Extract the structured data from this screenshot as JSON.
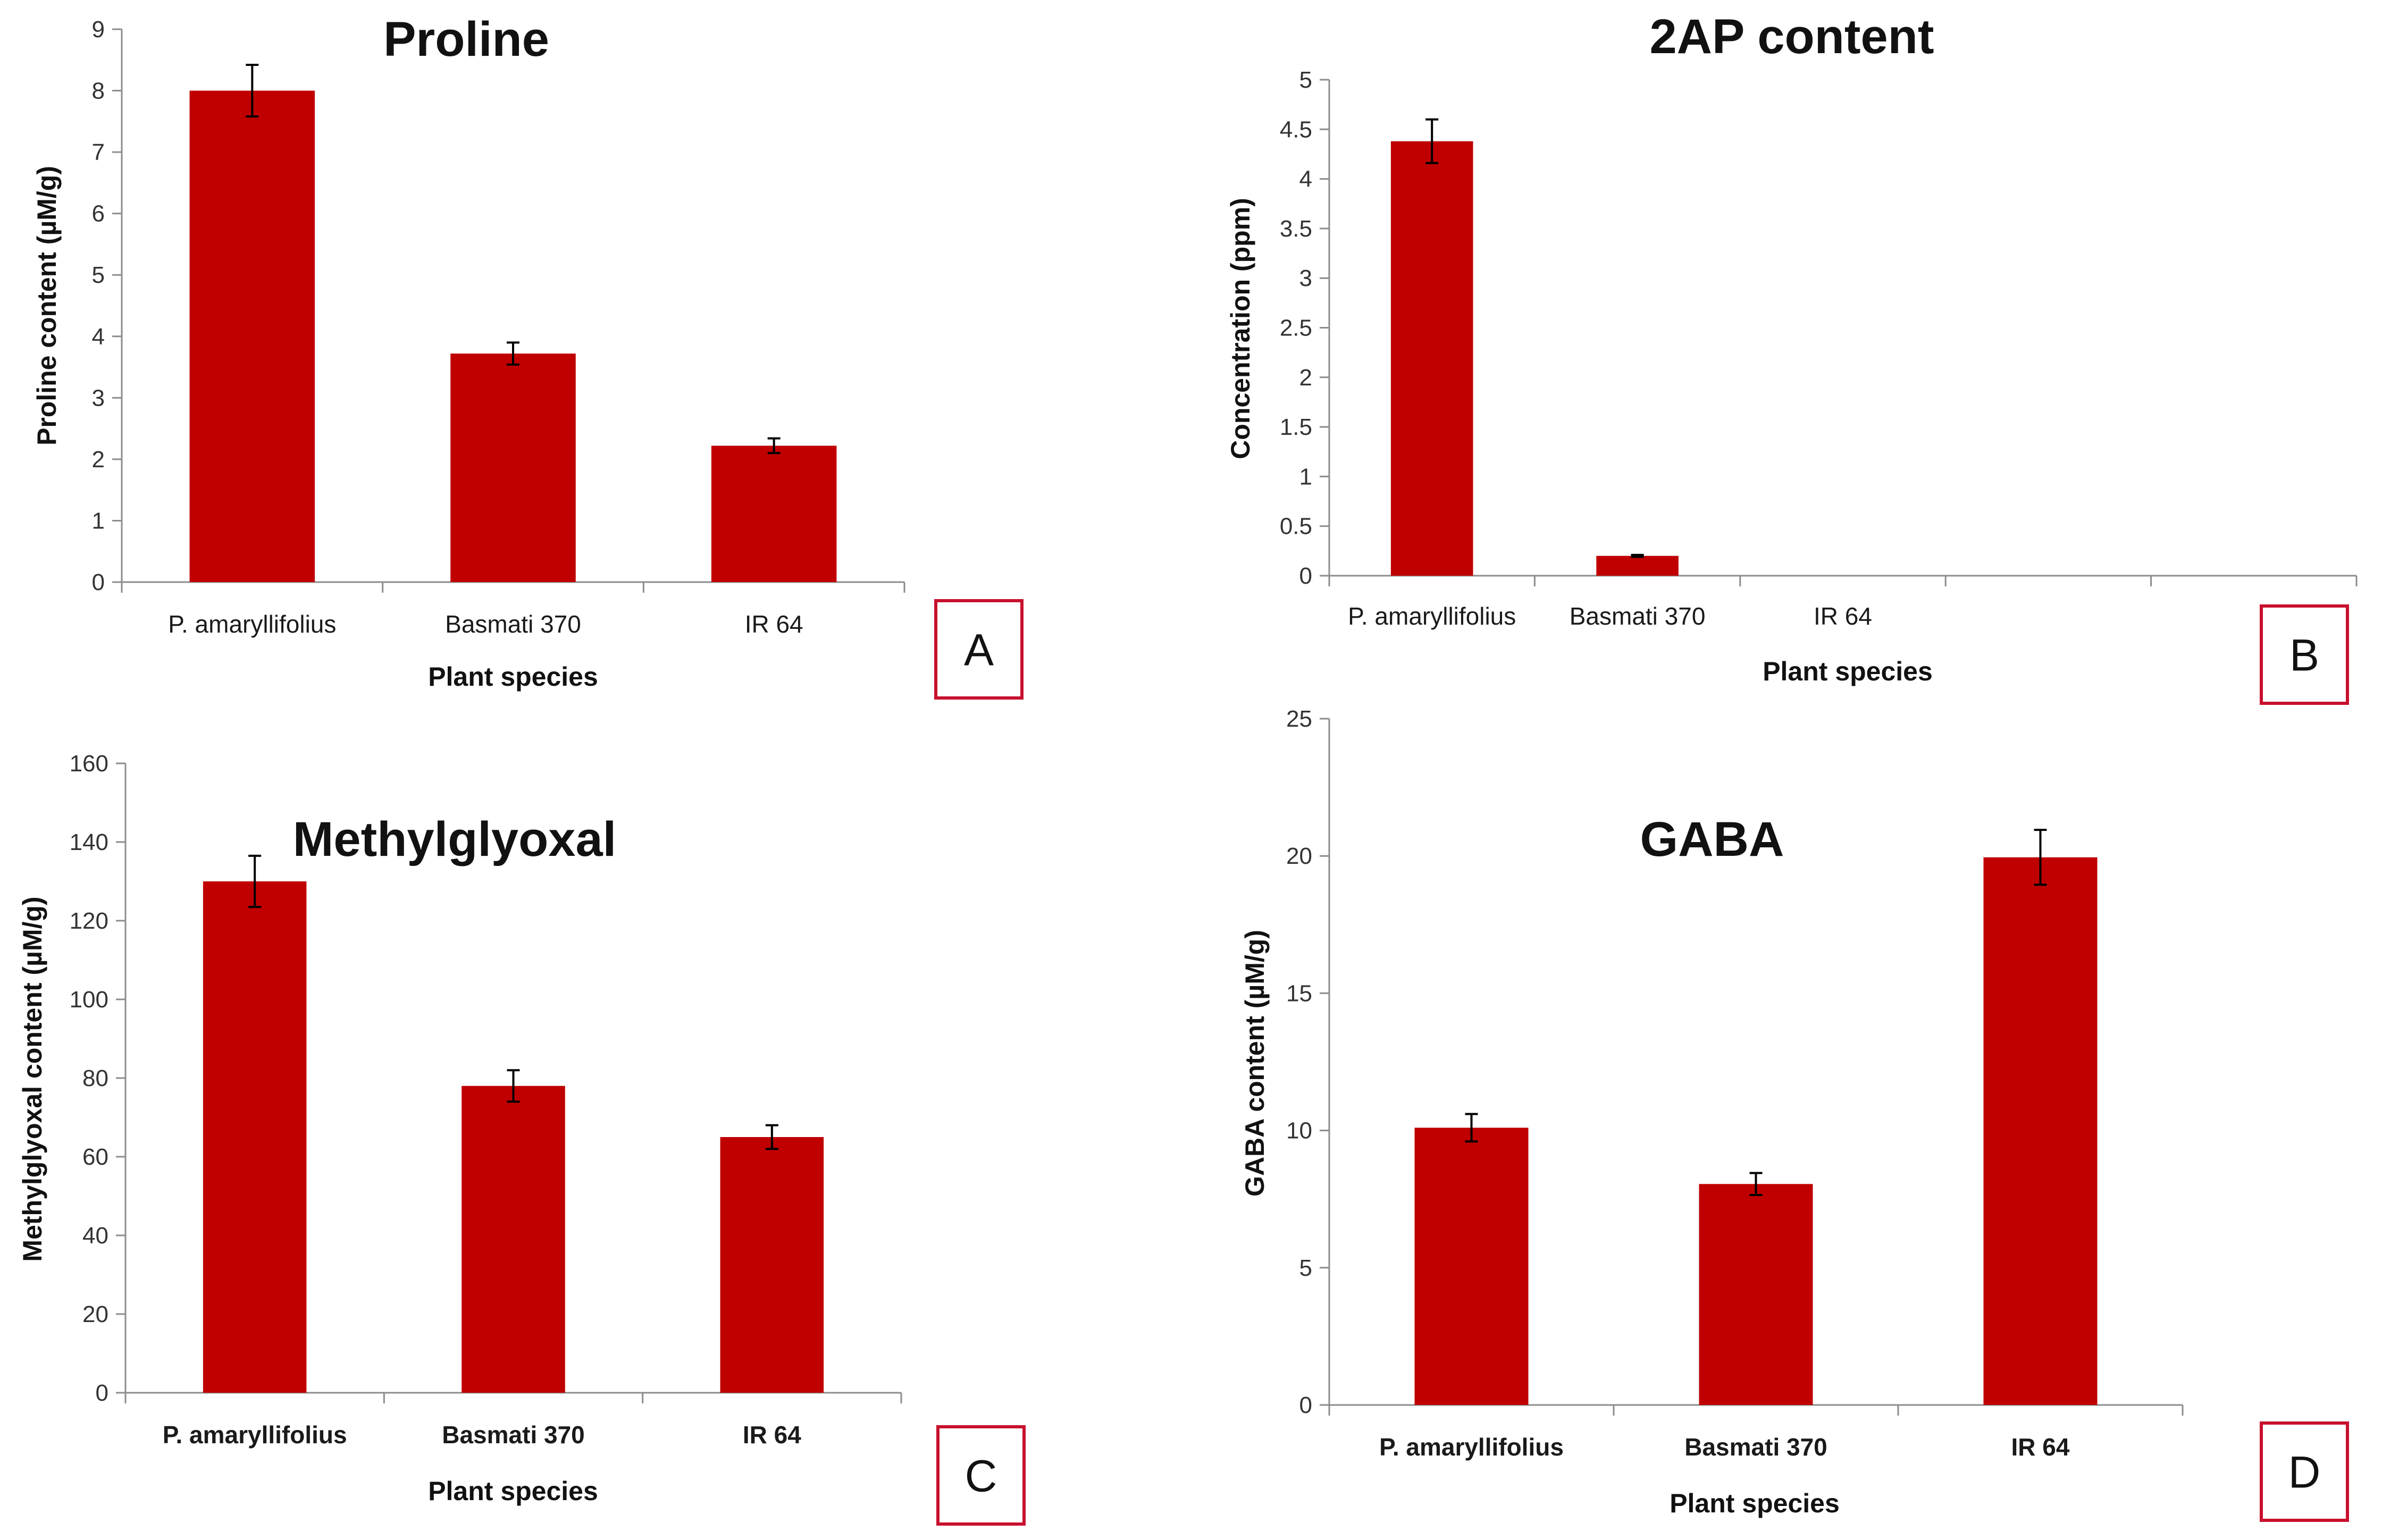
{
  "chart_data": [
    {
      "panel": "A",
      "type": "bar",
      "title": "Proline",
      "xlabel": "Plant species",
      "ylabel": "Proline content (µM/g)",
      "categories": [
        "P. amaryllifolius",
        "Basmati 370",
        "IR 64"
      ],
      "values": [
        8.0,
        3.72,
        2.22
      ],
      "errors": [
        0.42,
        0.18,
        0.12
      ],
      "ylim": [
        0,
        9
      ],
      "yticks": [
        0,
        1,
        2,
        3,
        4,
        5,
        6,
        7,
        8,
        9
      ],
      "bar_color": "#c00000",
      "bold_category_labels": false
    },
    {
      "panel": "B",
      "type": "bar",
      "title": "2AP content",
      "xlabel": "Plant species",
      "ylabel": "Concentration (ppm)",
      "categories": [
        "P. amaryllifolius",
        "Basmati 370",
        "IR 64",
        "",
        ""
      ],
      "values": [
        4.38,
        0.2,
        0,
        0,
        0
      ],
      "errors": [
        0.22,
        0.01,
        0,
        0,
        0
      ],
      "ylim": [
        0,
        5
      ],
      "yticks": [
        0,
        0.5,
        1,
        1.5,
        2,
        2.5,
        3,
        3.5,
        4,
        4.5,
        5
      ],
      "bar_color": "#c00000",
      "bold_category_labels": false
    },
    {
      "panel": "C",
      "type": "bar",
      "title": "Methylglyoxal",
      "xlabel": "Plant species",
      "ylabel": "Methylglyoxal content (µM/g)",
      "categories": [
        "P. amaryllifolius",
        "Basmati 370",
        "IR 64"
      ],
      "values": [
        130,
        78,
        65
      ],
      "errors": [
        6.5,
        4,
        3
      ],
      "ylim": [
        0,
        160
      ],
      "yticks": [
        0,
        20,
        40,
        60,
        80,
        100,
        120,
        140,
        160
      ],
      "bar_color": "#c00000",
      "bold_category_labels": true
    },
    {
      "panel": "D",
      "type": "bar",
      "title": "GABA",
      "xlabel": "Plant species",
      "ylabel": "GABA content (µM/g)",
      "categories": [
        "P. amaryllifolius",
        "Basmati 370",
        "IR 64"
      ],
      "values": [
        10.1,
        8.05,
        19.95
      ],
      "errors": [
        0.5,
        0.4,
        1.0
      ],
      "ylim": [
        0,
        25
      ],
      "yticks": [
        0,
        5,
        10,
        15,
        20,
        25
      ],
      "bar_color": "#c00000",
      "bold_category_labels": true
    }
  ]
}
